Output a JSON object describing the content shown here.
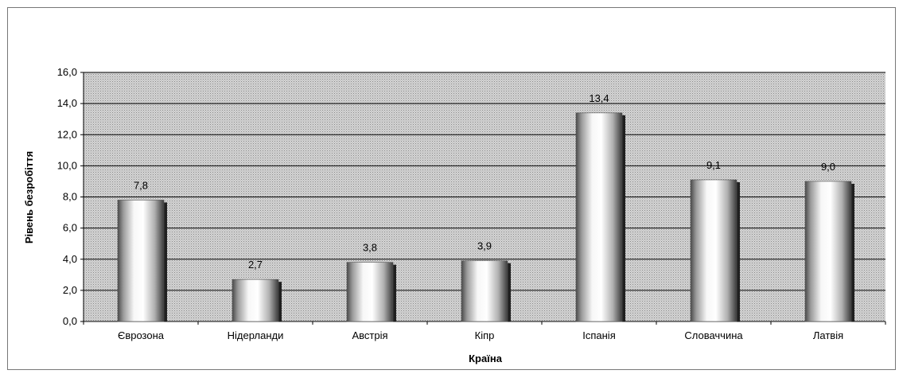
{
  "chart_data": {
    "type": "bar",
    "title": "",
    "xlabel": "Країна",
    "ylabel": "Рівень безробіття",
    "categories": [
      "Єврозона",
      "Нідерланди",
      "Австрія",
      "Кіпр",
      "Іспанія",
      "Словаччина",
      "Латвія"
    ],
    "values": [
      7.8,
      2.7,
      3.8,
      3.9,
      13.4,
      9.1,
      9.0
    ],
    "data_labels": [
      "7,8",
      "2,7",
      "3,8",
      "3,9",
      "13,4",
      "9,1",
      "9,0"
    ],
    "yticks": [
      "0,0",
      "2,0",
      "4,0",
      "6,0",
      "8,0",
      "10,0",
      "12,0",
      "14,0",
      "16,0"
    ],
    "ylim": [
      0,
      16
    ],
    "ystep": 2,
    "grid": true,
    "legend": "none",
    "colors": {
      "plot_background": "#c0c0c0",
      "bar_fill": "#f2f2f2",
      "bar_shadow": "#202020",
      "grid": "#000000"
    }
  }
}
